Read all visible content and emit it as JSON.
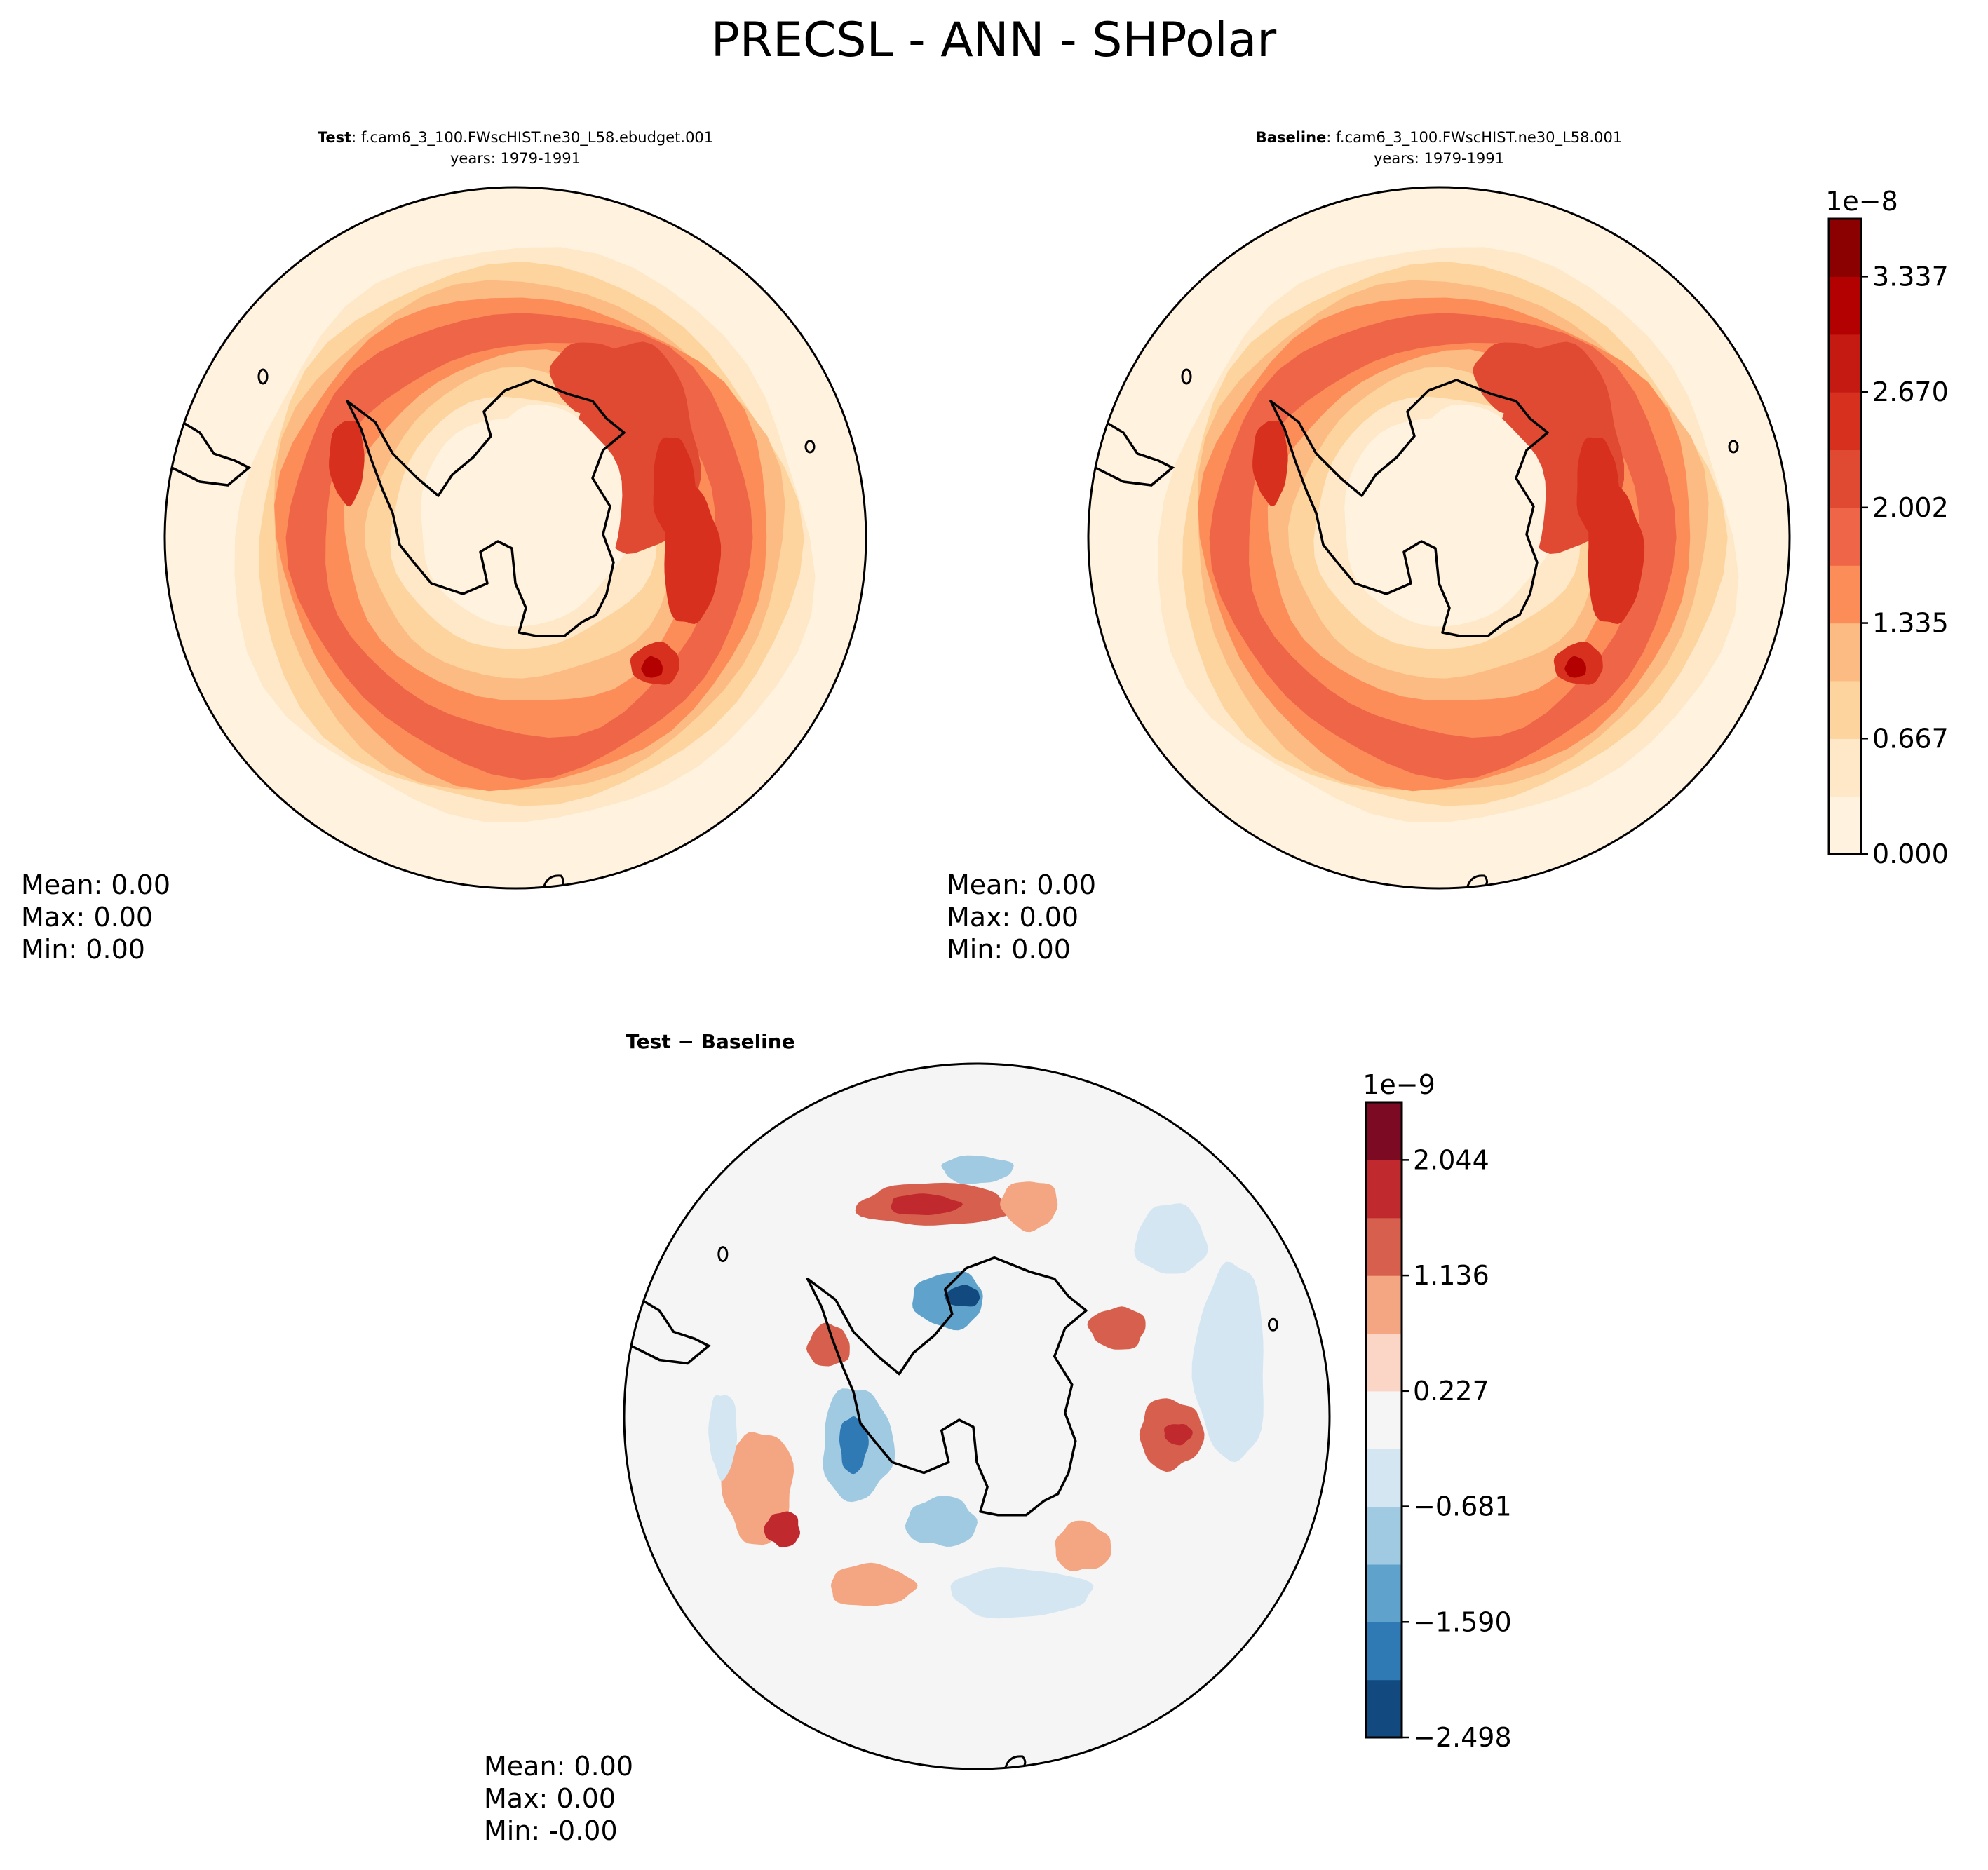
{
  "figure": {
    "title": "PRECSL - ANN - SHPolar"
  },
  "panels": {
    "test": {
      "title_bold": "Test",
      "title_rest": ": f.cam6_3_100.FWscHIST.ne30_L58.ebudget.001",
      "years": "years: 1979-1991",
      "stats": {
        "mean": "Mean:  0.00",
        "max": "Max:  0.00",
        "min": "Min:  0.00"
      }
    },
    "baseline": {
      "title_bold": "Baseline",
      "title_rest": ": f.cam6_3_100.FWscHIST.ne30_L58.001",
      "years": "years: 1979-1991",
      "stats": {
        "mean": "Mean:  0.00",
        "max": "Max:  0.00",
        "min": "Min:  0.00"
      }
    },
    "diff": {
      "title": "Test − Baseline",
      "stats": {
        "mean": "Mean:  0.00",
        "max": "Max:  0.00",
        "min": "Min: -0.00"
      }
    }
  },
  "chart_data": [
    {
      "type": "heatmap",
      "name": "test",
      "projection": "south-polar-stereographic",
      "variable": "PRECSL",
      "colormap": "OrRd-like",
      "levels_exponent_label": "1e−8",
      "tick_labels": [
        "0.000",
        "0.667",
        "1.335",
        "2.002",
        "2.670",
        "3.337"
      ],
      "colorbar_range": [
        0.0,
        3.6e-08
      ],
      "colors": [
        "#fff3e0",
        "#fee8c8",
        "#fdd49e",
        "#fdbb84",
        "#fc8d59",
        "#ef6548",
        "#e04a32",
        "#d7301f",
        "#c41a12",
        "#b30000",
        "#8b0000"
      ],
      "band_values": [
        1.5e-09,
        6e-09,
        1.1e-08,
        1.6e-08,
        2.2e-08,
        2.6e-08,
        2.95e-08
      ],
      "mean": "0.00",
      "max": "0.00",
      "min": "0.00"
    },
    {
      "type": "heatmap",
      "name": "baseline",
      "projection": "south-polar-stereographic",
      "variable": "PRECSL",
      "colormap": "OrRd-like",
      "levels_exponent_label": "1e−8",
      "tick_labels": [
        "0.000",
        "0.667",
        "1.335",
        "2.002",
        "2.670",
        "3.337"
      ],
      "colorbar_range": [
        0.0,
        3.6e-08
      ],
      "colors": [
        "#fff3e0",
        "#fee8c8",
        "#fdd49e",
        "#fdbb84",
        "#fc8d59",
        "#ef6548",
        "#e04a32",
        "#d7301f",
        "#c41a12",
        "#b30000",
        "#8b0000"
      ],
      "band_values": [
        1.5e-09,
        6e-09,
        1.1e-08,
        1.6e-08,
        2.2e-08,
        2.6e-08,
        2.95e-08
      ],
      "mean": "0.00",
      "max": "0.00",
      "min": "0.00"
    },
    {
      "type": "heatmap",
      "name": "difference",
      "projection": "south-polar-stereographic",
      "variable": "PRECSL",
      "colormap": "RdBu_r",
      "levels_exponent_label": "1e−9",
      "tick_labels": [
        "−2.498",
        "−1.590",
        "−0.681",
        "0.227",
        "1.136",
        "2.044"
      ],
      "colorbar_range": [
        -2.498e-09,
        2.5e-09
      ],
      "colors": [
        "#124a80",
        "#2f79b5",
        "#5fa3cc",
        "#9fcae1",
        "#d4e6f1",
        "#f5f5f5",
        "#fbd5c5",
        "#f4a582",
        "#d6604d",
        "#c0292e",
        "#7d0a23"
      ],
      "mean": "0.00",
      "max": "0.00",
      "min": "-0.00"
    }
  ]
}
